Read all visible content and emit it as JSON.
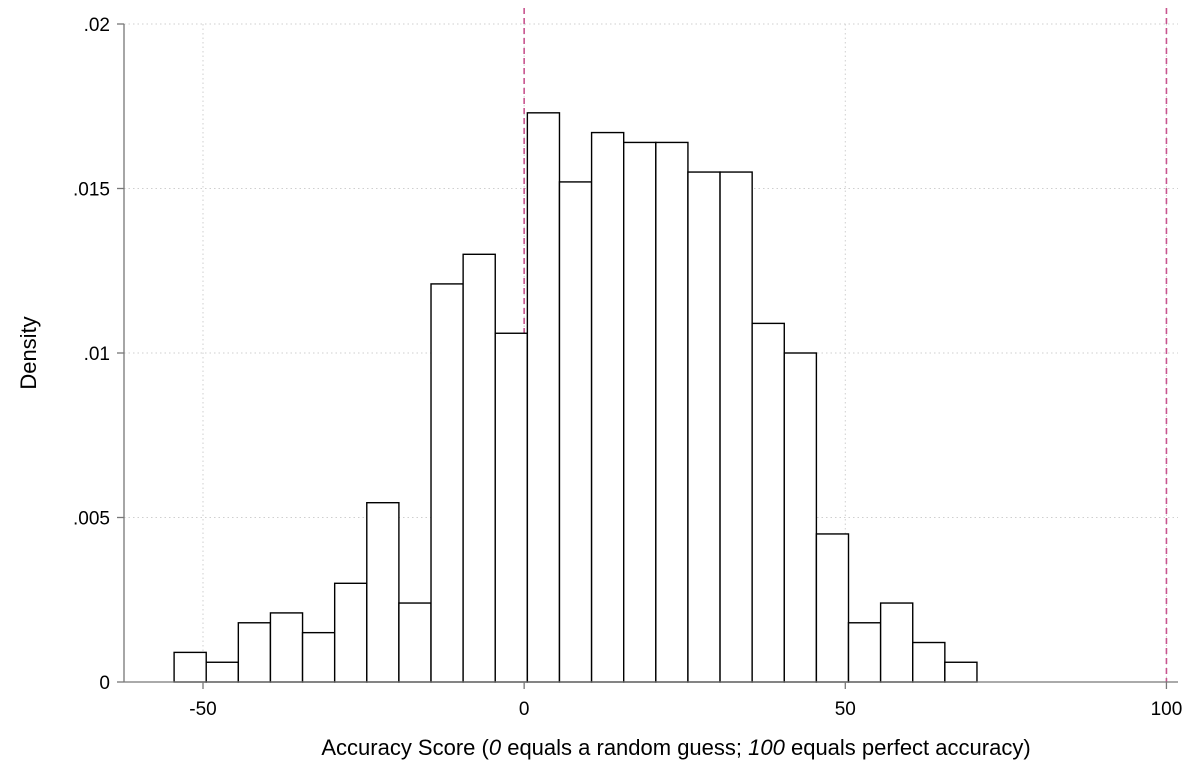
{
  "chart_data": {
    "type": "bar",
    "subtype": "histogram",
    "bin_width": 5,
    "bins": [
      {
        "start": -54.5,
        "value": 0.0009
      },
      {
        "start": -49.5,
        "value": 0.0006
      },
      {
        "start": -44.5,
        "value": 0.0018
      },
      {
        "start": -39.5,
        "value": 0.0021
      },
      {
        "start": -34.5,
        "value": 0.0015
      },
      {
        "start": -29.5,
        "value": 0.003
      },
      {
        "start": -24.5,
        "value": 0.00545
      },
      {
        "start": -19.5,
        "value": 0.0024
      },
      {
        "start": -14.5,
        "value": 0.0121
      },
      {
        "start": -9.5,
        "value": 0.013
      },
      {
        "start": -4.5,
        "value": 0.0106
      },
      {
        "start": 0.5,
        "value": 0.0173
      },
      {
        "start": 5.5,
        "value": 0.0152
      },
      {
        "start": 10.5,
        "value": 0.0167
      },
      {
        "start": 15.5,
        "value": 0.0164
      },
      {
        "start": 20.5,
        "value": 0.0164
      },
      {
        "start": 25.5,
        "value": 0.0155
      },
      {
        "start": 30.5,
        "value": 0.0155
      },
      {
        "start": 35.5,
        "value": 0.0109
      },
      {
        "start": 40.5,
        "value": 0.01
      },
      {
        "start": 45.5,
        "value": 0.0045
      },
      {
        "start": 50.5,
        "value": 0.0018
      },
      {
        "start": 55.5,
        "value": 0.0024
      },
      {
        "start": 60.5,
        "value": 0.0012
      },
      {
        "start": 65.5,
        "value": 0.0006
      }
    ],
    "reference_lines": [
      0,
      100
    ],
    "xlim": [
      -60,
      100
    ],
    "ylim": [
      0,
      0.02
    ],
    "xticks": [
      {
        "value": -50,
        "label": "-50"
      },
      {
        "value": 0,
        "label": "0"
      },
      {
        "value": 50,
        "label": "50"
      },
      {
        "value": 100,
        "label": "100"
      }
    ],
    "yticks": [
      {
        "value": 0,
        "label": "0"
      },
      {
        "value": 0.005,
        "label": ".005"
      },
      {
        "value": 0.01,
        "label": ".01"
      },
      {
        "value": 0.015,
        "label": ".015"
      },
      {
        "value": 0.02,
        "label": ".02"
      }
    ],
    "ylabel": "Density",
    "xlabel_parts": [
      {
        "text": "Accuracy Score (",
        "italic": false
      },
      {
        "text": "0",
        "italic": true
      },
      {
        "text": " equals a random guess; ",
        "italic": false
      },
      {
        "text": "100",
        "italic": true
      },
      {
        "text": " equals perfect accuracy)",
        "italic": false
      }
    ],
    "grid": true,
    "colors": {
      "bar_fill": "#ffffff",
      "bar_stroke": "#000000",
      "reference_line": "#c8548e",
      "grid": "#cfcfcf",
      "axis": "#777777"
    }
  }
}
